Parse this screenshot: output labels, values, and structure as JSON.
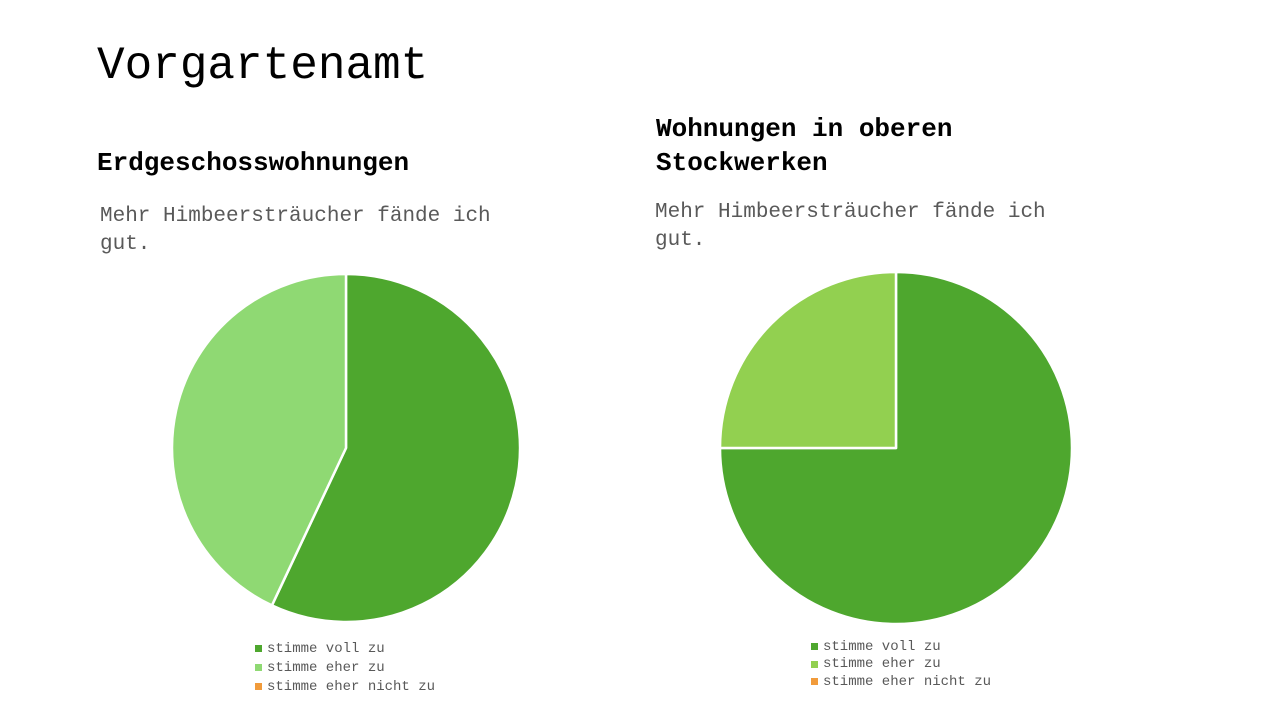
{
  "slide": {
    "title": "Vorgartenamt"
  },
  "chart_data": [
    {
      "type": "pie",
      "title": "Erdgeschosswohnungen",
      "subtitle": "Mehr Himbeersträucher fände ich gut.",
      "categories": [
        "stimme voll zu",
        "stimme eher zu",
        "stimme eher nicht zu"
      ],
      "values": [
        57,
        43,
        0
      ],
      "colors": [
        "#4EA72E",
        "#8FD973",
        "#F19B3B"
      ],
      "legend": "bottom"
    },
    {
      "type": "pie",
      "title": "Wohnungen in oberen Stockwerken",
      "subtitle": "Mehr Himbeersträucher fände ich gut.",
      "categories": [
        "stimme voll zu",
        "stimme eher zu",
        "stimme eher nicht zu"
      ],
      "values": [
        75,
        25,
        0
      ],
      "colors": [
        "#4EA72E",
        "#92D050",
        "#F19B3B"
      ],
      "legend": "bottom"
    }
  ]
}
